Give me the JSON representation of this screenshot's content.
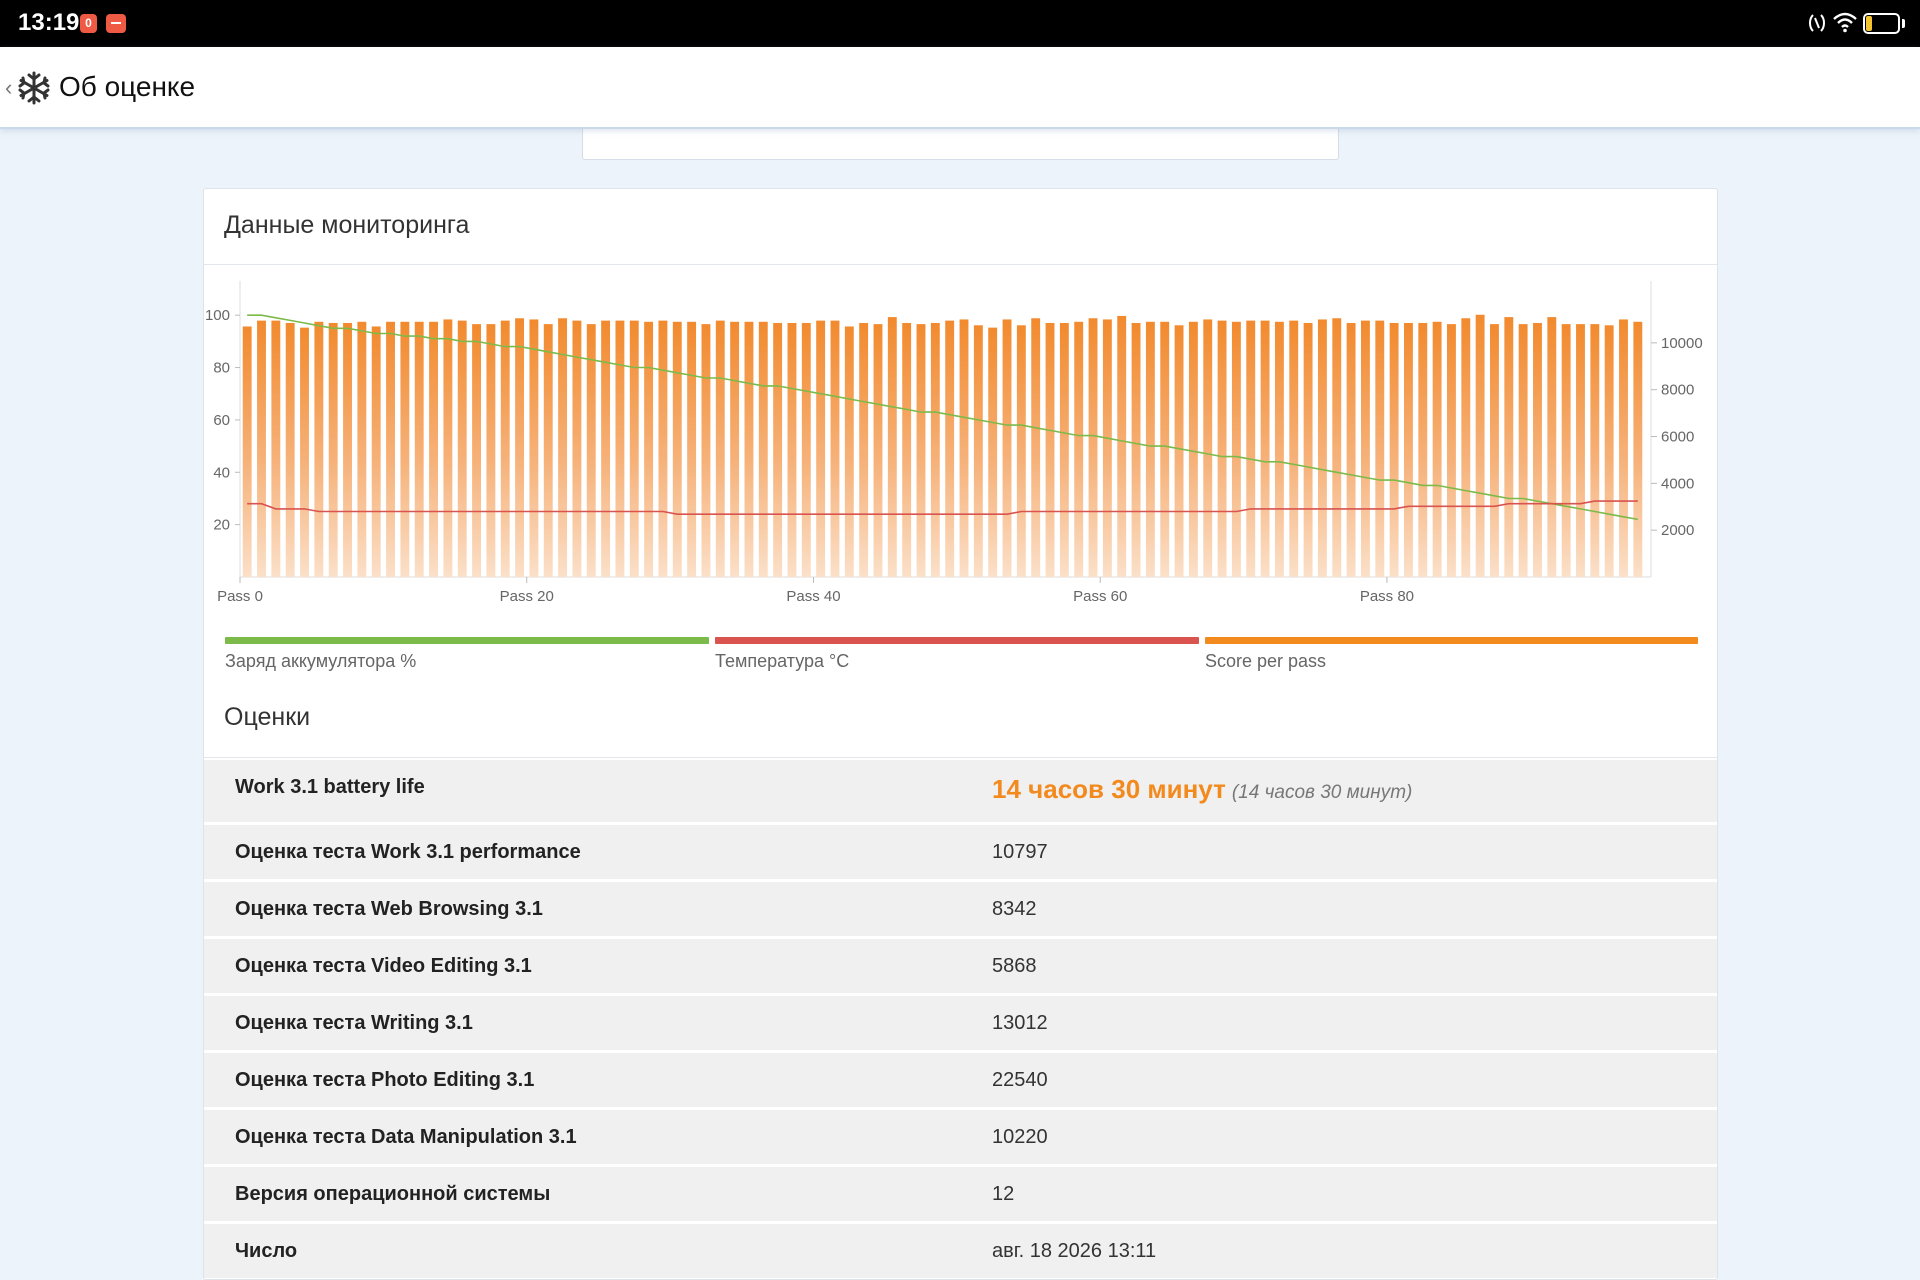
{
  "status_bar": {
    "time": "13:19",
    "notif_badge": "0",
    "battery_level": "20",
    "battery_color": "#f4c430"
  },
  "header": {
    "title": "Об оценке",
    "back_icon": "chevron-left-icon",
    "logo_icon": "snowflake-icon"
  },
  "monitoring": {
    "title": "Данные мониторинга",
    "legend": [
      {
        "label": "Заряд аккумулятора %",
        "color": "#7cba4a"
      },
      {
        "label": "Температура °C",
        "color": "#d9534f"
      },
      {
        "label": "Score per pass",
        "color": "#f28a1e"
      }
    ]
  },
  "chart_data": {
    "type": "bar",
    "x_ticks": [
      "Pass 0",
      "Pass 20",
      "Pass 40",
      "Pass 60",
      "Pass 80"
    ],
    "passes": 98,
    "left_axis": {
      "ticks": [
        20,
        40,
        60,
        80,
        100
      ],
      "ylim": [
        0,
        110
      ]
    },
    "right_axis": {
      "ticks": [
        2000,
        4000,
        6000,
        8000,
        10000
      ],
      "ylim": [
        0,
        12300
      ]
    },
    "series": [
      {
        "name": "Score per pass",
        "axis": "right",
        "values": [
          10700,
          10950,
          10950,
          10850,
          10650,
          10900,
          10850,
          10850,
          10900,
          10700,
          10900,
          10900,
          10900,
          10900,
          11000,
          10950,
          10800,
          10800,
          10950,
          11050,
          11000,
          10800,
          11050,
          10950,
          10800,
          10950,
          10950,
          10950,
          10900,
          10950,
          10900,
          10900,
          10800,
          10950,
          10900,
          10900,
          10900,
          10850,
          10850,
          10850,
          10950,
          10950,
          10700,
          10850,
          10800,
          11100,
          10850,
          10800,
          10850,
          10950,
          11000,
          10750,
          10650,
          11000,
          10750,
          11050,
          10850,
          10850,
          10900,
          11050,
          11000,
          11150,
          10850,
          10900,
          10900,
          10750,
          10900,
          11000,
          10950,
          10900,
          10950,
          10950,
          10900,
          10950,
          10850,
          11000,
          11050,
          10850,
          10950,
          10950,
          10850,
          10850,
          10850,
          10900,
          10800,
          11050,
          11200,
          10800,
          11100,
          10800,
          10850,
          11100,
          10800,
          10800,
          10800,
          10750,
          11000,
          10900
        ]
      },
      {
        "name": "Заряд аккумулятора %",
        "axis": "left",
        "values": [
          100,
          100,
          99,
          98,
          97,
          96,
          95,
          95,
          94,
          93,
          93,
          92,
          92,
          91,
          91,
          90,
          90,
          89,
          88,
          88,
          87,
          86,
          85,
          84,
          83,
          82,
          81,
          80,
          80,
          79,
          78,
          77,
          76,
          76,
          75,
          74,
          73,
          73,
          72,
          71,
          70,
          69,
          68,
          67,
          66,
          65,
          64,
          63,
          63,
          62,
          61,
          60,
          59,
          58,
          58,
          57,
          56,
          55,
          54,
          54,
          53,
          52,
          51,
          50,
          50,
          49,
          48,
          47,
          46,
          46,
          45,
          44,
          44,
          43,
          42,
          41,
          40,
          39,
          38,
          37,
          37,
          36,
          35,
          35,
          34,
          33,
          32,
          31,
          30,
          30,
          29,
          28,
          27,
          26,
          25,
          24,
          23,
          22
        ]
      },
      {
        "name": "Температура °C",
        "axis": "left",
        "values": [
          28,
          28,
          26,
          26,
          26,
          25,
          25,
          25,
          25,
          25,
          25,
          25,
          25,
          25,
          25,
          25,
          25,
          25,
          25,
          25,
          25,
          25,
          25,
          25,
          25,
          25,
          25,
          25,
          25,
          25,
          24,
          24,
          24,
          24,
          24,
          24,
          24,
          24,
          24,
          24,
          24,
          24,
          24,
          24,
          24,
          24,
          24,
          24,
          24,
          24,
          24,
          24,
          24,
          24,
          25,
          25,
          25,
          25,
          25,
          25,
          25,
          25,
          25,
          25,
          25,
          25,
          25,
          25,
          25,
          25,
          26,
          26,
          26,
          26,
          26,
          26,
          26,
          26,
          26,
          26,
          26,
          27,
          27,
          27,
          27,
          27,
          27,
          27,
          28,
          28,
          28,
          28,
          28,
          28,
          29,
          29,
          29,
          29
        ]
      }
    ]
  },
  "scores": {
    "title": "Оценки",
    "rows": [
      {
        "name": "Work 3.1 battery life",
        "value": "14 часов 30 минут",
        "sub": "(14 часов 30 минут)"
      },
      {
        "name": "Оценка теста Work 3.1 performance",
        "value": "10797"
      },
      {
        "name": "Оценка теста Web Browsing 3.1",
        "value": "8342"
      },
      {
        "name": "Оценка теста Video Editing 3.1",
        "value": "5868"
      },
      {
        "name": "Оценка теста Writing 3.1",
        "value": "13012"
      },
      {
        "name": "Оценка теста Photo Editing 3.1",
        "value": "22540"
      },
      {
        "name": "Оценка теста Data Manipulation 3.1",
        "value": "10220"
      },
      {
        "name": "Версия операционной системы",
        "value": "12"
      },
      {
        "name": "Число",
        "value": "авг. 18 2026 13:11"
      }
    ]
  }
}
